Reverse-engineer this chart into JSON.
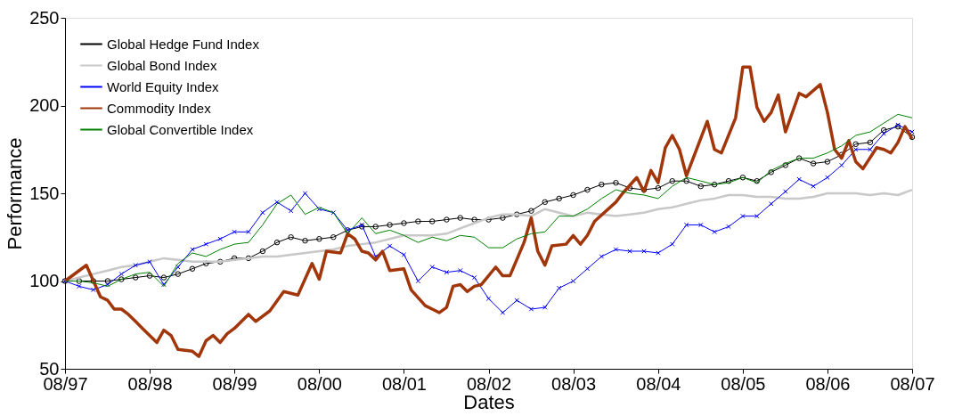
{
  "chart_data": {
    "type": "line",
    "xlabel": "Dates",
    "ylabel": "Performance",
    "x": [
      "1997-08",
      "1997-10",
      "1997-12",
      "1998-02",
      "1998-04",
      "1998-06",
      "1998-08",
      "1998-10",
      "1998-12",
      "1999-02",
      "1999-04",
      "1999-06",
      "1999-08",
      "1999-10",
      "1999-12",
      "2000-02",
      "2000-04",
      "2000-06",
      "2000-08",
      "2000-10",
      "2000-12",
      "2001-02",
      "2001-04",
      "2001-06",
      "2001-08",
      "2001-10",
      "2001-12",
      "2002-02",
      "2002-04",
      "2002-06",
      "2002-08",
      "2002-10",
      "2002-12",
      "2003-02",
      "2003-04",
      "2003-06",
      "2003-08",
      "2003-10",
      "2003-12",
      "2004-02",
      "2004-04",
      "2004-06",
      "2004-08",
      "2004-10",
      "2004-12",
      "2005-02",
      "2005-04",
      "2005-06",
      "2005-08",
      "2005-10",
      "2005-12",
      "2006-02",
      "2006-04",
      "2006-06",
      "2006-08",
      "2006-10",
      "2006-12",
      "2007-02",
      "2007-04",
      "2007-06",
      "2007-08"
    ],
    "series": [
      {
        "name": "Global Hedge Fund Index",
        "color": "#000000",
        "marker": "circle",
        "values": [
          100,
          100,
          100,
          100,
          101,
          102,
          103,
          102,
          104,
          107,
          110,
          111,
          113,
          113,
          117,
          122,
          125,
          123,
          124,
          125,
          129,
          131,
          131,
          132,
          133,
          134,
          134,
          135,
          136,
          135,
          135,
          136,
          138,
          140,
          145,
          147,
          149,
          152,
          155,
          156,
          153,
          152,
          153,
          157,
          157,
          154,
          155,
          157,
          159,
          157,
          162,
          166,
          170,
          167,
          168,
          172,
          178,
          179,
          186,
          188,
          182
        ]
      },
      {
        "name": "Global Bond Index",
        "color": "#c8c8c8",
        "marker": "none",
        "values": [
          100,
          102,
          104,
          106,
          108,
          109,
          111,
          113,
          112,
          111,
          111,
          111,
          112,
          113,
          114,
          114,
          115,
          116,
          117,
          118,
          120,
          121,
          122,
          124,
          126,
          126,
          126,
          127,
          130,
          133,
          136,
          138,
          138,
          137,
          141,
          139,
          137,
          139,
          138,
          137,
          138,
          139,
          141,
          142,
          144,
          146,
          147,
          149,
          149,
          148,
          148,
          147,
          147,
          148,
          150,
          150,
          150,
          149,
          150,
          149,
          152
        ]
      },
      {
        "name": "World Equity Index",
        "color": "#0000ff",
        "marker": "cross",
        "values": [
          100,
          97,
          95,
          98,
          104,
          109,
          111,
          98,
          108,
          118,
          121,
          124,
          128,
          128,
          139,
          145,
          140,
          150,
          141,
          139,
          129,
          132,
          114,
          120,
          115,
          100,
          108,
          105,
          106,
          102,
          90,
          82,
          89,
          84,
          85,
          96,
          100,
          107,
          114,
          118,
          117,
          117,
          116,
          121,
          132,
          132,
          128,
          131,
          137,
          137,
          144,
          151,
          158,
          154,
          159,
          166,
          175,
          175,
          184,
          189,
          185
        ]
      },
      {
        "name": "Commodity Index",
        "color": "#a0360a",
        "marker": "none",
        "x": [
          "1997-08",
          "1997-11",
          "1998-01",
          "1998-02",
          "1998-03",
          "1998-04",
          "1998-05",
          "1998-06",
          "1998-07",
          "1998-09",
          "1998-10",
          "1998-11",
          "1998-12",
          "1999-02",
          "1999-03",
          "1999-04",
          "1999-05",
          "1999-06",
          "1999-07",
          "1999-08",
          "1999-10",
          "1999-11",
          "2000-01",
          "2000-03",
          "2000-05",
          "2000-07",
          "2000-08",
          "2000-09",
          "2000-11",
          "2000-12",
          "2001-01",
          "2001-02",
          "2001-03",
          "2001-04",
          "2001-05",
          "2001-06",
          "2001-08",
          "2001-09",
          "2001-11",
          "2001-12",
          "2002-01",
          "2002-02",
          "2002-03",
          "2002-04",
          "2002-05",
          "2002-06",
          "2002-07",
          "2002-09",
          "2002-10",
          "2002-11",
          "2003-01",
          "2003-02",
          "2003-03",
          "2003-04",
          "2003-05",
          "2003-07",
          "2003-08",
          "2003-09",
          "2003-10",
          "2003-11",
          "2004-02",
          "2004-03",
          "2004-05",
          "2004-06",
          "2004-07",
          "2004-08",
          "2004-09",
          "2004-10",
          "2004-11",
          "2004-12",
          "2005-03",
          "2005-04",
          "2005-05",
          "2005-07",
          "2005-08",
          "2005-09",
          "2005-10",
          "2005-11",
          "2005-12",
          "2006-01",
          "2006-02",
          "2006-04",
          "2006-05",
          "2006-07",
          "2006-08",
          "2006-09",
          "2006-10",
          "2006-11",
          "2006-12",
          "2007-01",
          "2007-03",
          "2007-04",
          "2007-05",
          "2007-06",
          "2007-07",
          "2007-08"
        ],
        "values": [
          100,
          109,
          91,
          89,
          84,
          84,
          81,
          77,
          73,
          65,
          72,
          69,
          61,
          60,
          57,
          66,
          69,
          65,
          70,
          73,
          81,
          77,
          83,
          94,
          92,
          110,
          101,
          117,
          116,
          127,
          124,
          117,
          116,
          112,
          117,
          106,
          107,
          95,
          86,
          84,
          82,
          85,
          97,
          98,
          94,
          97,
          98,
          108,
          103,
          103,
          122,
          136,
          117,
          109,
          120,
          121,
          126,
          121,
          126,
          134,
          145,
          150,
          159,
          151,
          163,
          156,
          176,
          183,
          175,
          160,
          191,
          175,
          173,
          193,
          222,
          222,
          199,
          191,
          196,
          206,
          185,
          207,
          205,
          212,
          196,
          175,
          170,
          180,
          168,
          164,
          176,
          175,
          173,
          179,
          188,
          181
        ]
      },
      {
        "name": "Global Convertible Index",
        "color": "#008000",
        "marker": "none",
        "values": [
          100,
          100,
          99,
          97,
          101,
          104,
          105,
          97,
          110,
          116,
          114,
          118,
          121,
          122,
          132,
          144,
          149,
          138,
          142,
          139,
          127,
          136,
          127,
          129,
          126,
          122,
          125,
          123,
          126,
          125,
          119,
          119,
          124,
          127,
          128,
          137,
          137,
          141,
          147,
          152,
          150,
          149,
          147,
          154,
          159,
          157,
          155,
          156,
          159,
          156,
          163,
          167,
          170,
          170,
          173,
          177,
          183,
          185,
          190,
          195,
          193
        ]
      }
    ],
    "xlim": [
      "1997-08",
      "2007-08"
    ],
    "xticks": [
      {
        "value": "1997-08",
        "label": "08/97"
      },
      {
        "value": "1998-08",
        "label": "08/98"
      },
      {
        "value": "1999-08",
        "label": "08/99"
      },
      {
        "value": "2000-08",
        "label": "08/00"
      },
      {
        "value": "2001-08",
        "label": "08/01"
      },
      {
        "value": "2002-08",
        "label": "08/02"
      },
      {
        "value": "2003-08",
        "label": "08/03"
      },
      {
        "value": "2004-08",
        "label": "08/04"
      },
      {
        "value": "2005-08",
        "label": "08/05"
      },
      {
        "value": "2006-08",
        "label": "08/06"
      },
      {
        "value": "2007-08",
        "label": "08/07"
      }
    ],
    "ylim": [
      50,
      250
    ],
    "yticks": [
      50,
      100,
      150,
      200,
      250
    ],
    "grid": false,
    "legend": "top left",
    "line_style": "solid"
  }
}
